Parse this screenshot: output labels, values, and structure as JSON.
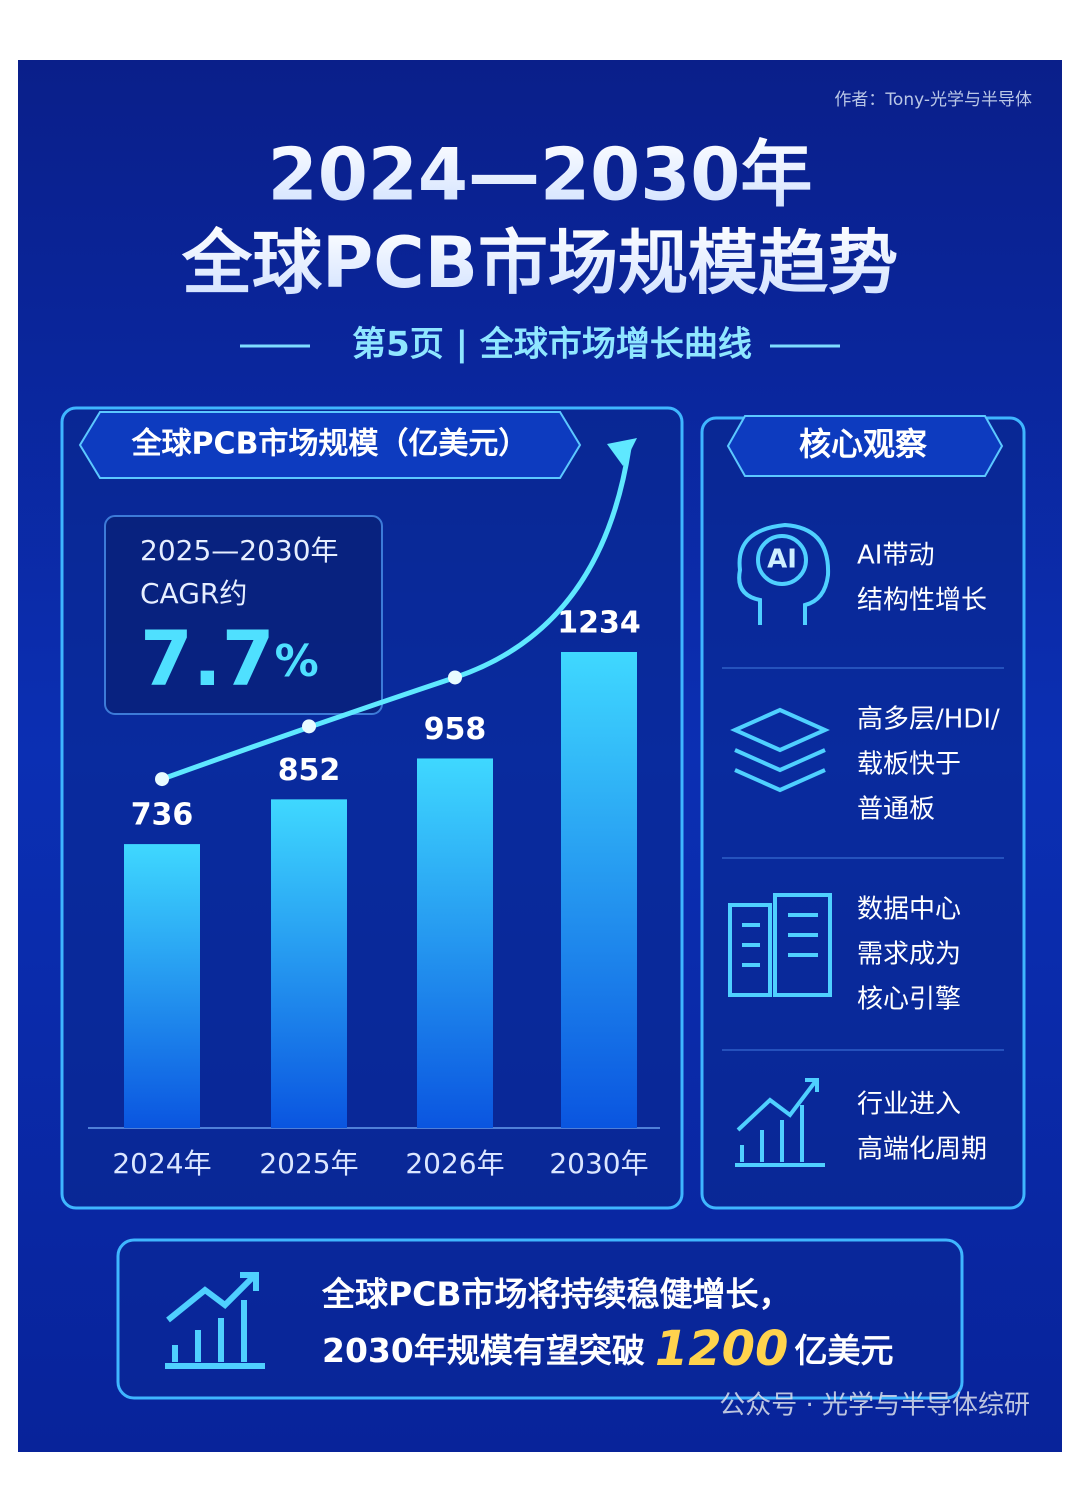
{
  "author": "作者：Tony-光学与半导体",
  "title_line1": "2024—2030年",
  "title_line2": "全球PCB市场规模趋势",
  "subtitle": "第5页 | 全球市场增长曲线",
  "chart_data": {
    "type": "bar",
    "title": "全球PCB市场规模（亿美元）",
    "categories": [
      "2024年",
      "2025年",
      "2026年",
      "2030年"
    ],
    "values": [
      736,
      852,
      958,
      1234
    ],
    "color": "#22b8f5"
  },
  "cagr": {
    "line1": "2025—2030年",
    "line2": "CAGR约",
    "value": "7.7",
    "unit": "%"
  },
  "observations": {
    "title": "核心观察",
    "items": [
      {
        "icon_label": "AI",
        "lines": [
          "AI带动",
          "结构性增长"
        ]
      },
      {
        "lines": [
          "高多层/HDI/",
          "载板快于",
          "普通板"
        ]
      },
      {
        "lines": [
          "数据中心",
          "需求成为",
          "核心引擎"
        ]
      },
      {
        "lines": [
          "行业进入",
          "高端化周期"
        ]
      }
    ]
  },
  "conclusion": {
    "line1": "全球PCB市场将持续稳健增长，",
    "line2_prefix": "2030年规模有望突破",
    "highlight": "1200",
    "line2_suffix": "亿美元"
  },
  "watermark": "公众号 · 光学与半导体综研"
}
